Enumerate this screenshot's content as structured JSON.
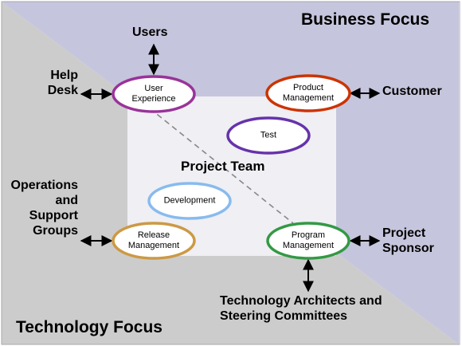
{
  "quadrants": {
    "business_focus": "Business Focus",
    "technology_focus": "Technology Focus"
  },
  "center_label": "Project Team",
  "roles": {
    "user_experience": [
      "User",
      "Experience"
    ],
    "product_management": [
      "Product",
      "Management"
    ],
    "test": [
      "Test"
    ],
    "development": [
      "Development"
    ],
    "release_management": [
      "Release",
      "Management"
    ],
    "program_management": [
      "Program",
      "Management"
    ]
  },
  "stakeholders": {
    "users": "Users",
    "help_desk": [
      "Help",
      "Desk"
    ],
    "customer": "Customer",
    "operations": [
      "Operations",
      "and",
      "Support",
      "Groups"
    ],
    "project_sponsor": [
      "Project",
      "Sponsor"
    ],
    "tech_architects": [
      "Technology Architects and",
      "Steering Committees"
    ]
  },
  "colors": {
    "business_background": "#c5c5dd",
    "technology_background": "#cccccc",
    "team_box": "#efeff4",
    "border": "#a8a8a8",
    "user_experience": "#993399",
    "product_management": "#cc3300",
    "test": "#6633aa",
    "development": "#88bbee",
    "release_management": "#cc9944",
    "program_management": "#339944",
    "divider_dashed": "#888888",
    "arrow": "#000000"
  }
}
